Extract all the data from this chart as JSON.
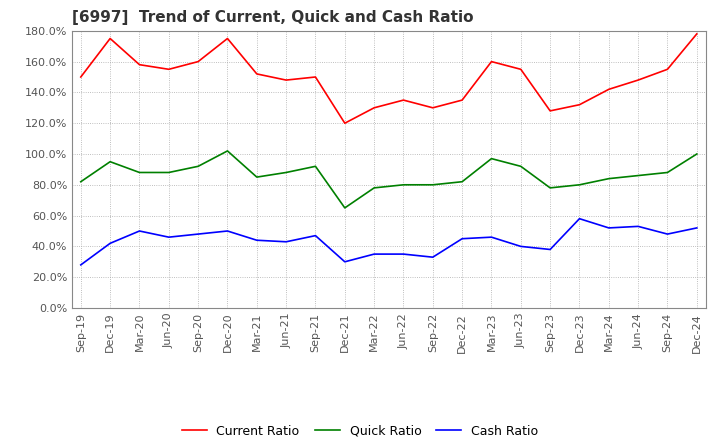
{
  "title": "[6997]  Trend of Current, Quick and Cash Ratio",
  "x_labels": [
    "Sep-19",
    "Dec-19",
    "Mar-20",
    "Jun-20",
    "Sep-20",
    "Dec-20",
    "Mar-21",
    "Jun-21",
    "Sep-21",
    "Dec-21",
    "Mar-22",
    "Jun-22",
    "Sep-22",
    "Dec-22",
    "Mar-23",
    "Jun-23",
    "Sep-23",
    "Dec-23",
    "Mar-24",
    "Jun-24",
    "Sep-24",
    "Dec-24"
  ],
  "current_ratio": [
    150,
    175,
    158,
    155,
    160,
    175,
    152,
    148,
    150,
    120,
    130,
    135,
    130,
    135,
    160,
    155,
    128,
    132,
    142,
    148,
    155,
    178
  ],
  "quick_ratio": [
    82,
    95,
    88,
    88,
    92,
    102,
    85,
    88,
    92,
    65,
    78,
    80,
    80,
    82,
    97,
    92,
    78,
    80,
    84,
    86,
    88,
    100
  ],
  "cash_ratio": [
    28,
    42,
    50,
    46,
    48,
    50,
    44,
    43,
    47,
    30,
    35,
    35,
    33,
    45,
    46,
    40,
    38,
    58,
    52,
    53,
    48,
    52
  ],
  "ylim": [
    0,
    180
  ],
  "yticks": [
    0,
    20,
    40,
    60,
    80,
    100,
    120,
    140,
    160,
    180
  ],
  "current_color": "#FF0000",
  "quick_color": "#008000",
  "cash_color": "#0000FF",
  "background_color": "#FFFFFF",
  "grid_color": "#AAAAAA",
  "title_fontsize": 11,
  "tick_fontsize": 8,
  "legend_fontsize": 9
}
